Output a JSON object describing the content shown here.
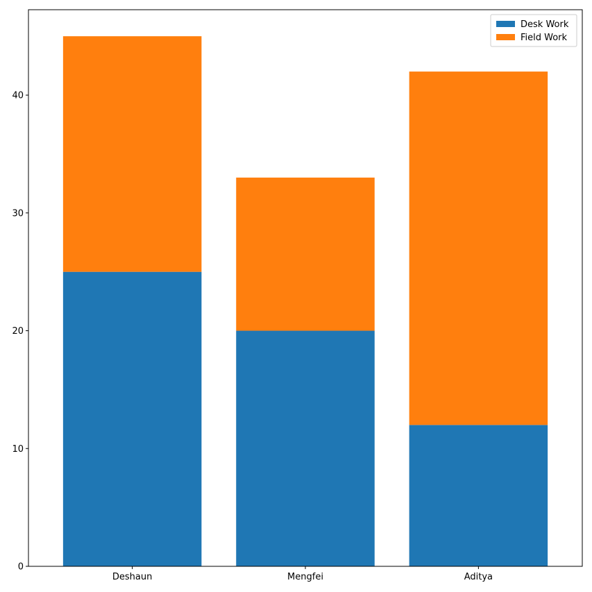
{
  "chart_data": {
    "type": "bar",
    "stacked": true,
    "categories": [
      "Deshaun",
      "Mengfei",
      "Aditya"
    ],
    "series": [
      {
        "name": "Desk Work",
        "values": [
          25,
          20,
          12
        ],
        "color": "#1f77b4"
      },
      {
        "name": "Field Work",
        "values": [
          20,
          13,
          30
        ],
        "color": "#ff7f0e"
      }
    ],
    "title": "",
    "xlabel": "",
    "ylabel": "",
    "ylim": [
      0,
      47.25
    ],
    "yticks": [
      0,
      10,
      20,
      30,
      40
    ],
    "grid": false,
    "legend": "top-right"
  }
}
